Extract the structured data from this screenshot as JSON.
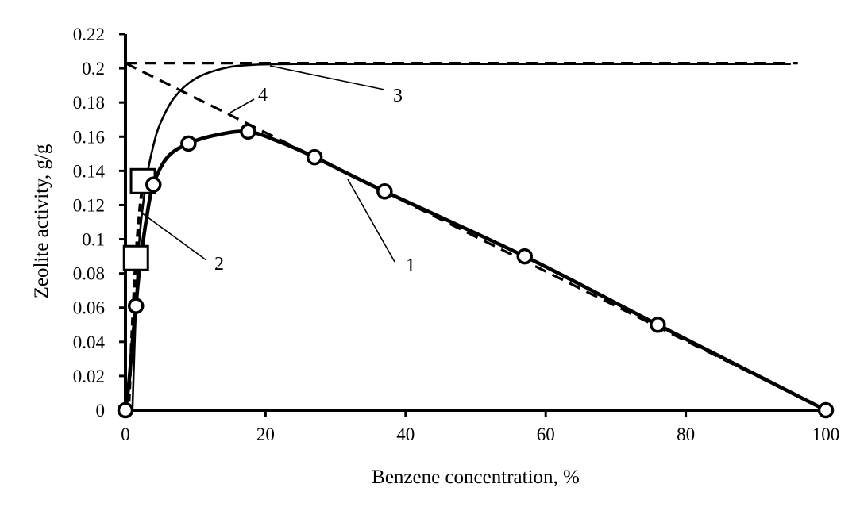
{
  "chart_data": {
    "type": "line",
    "xlabel": "Benzene concentration, %",
    "ylabel": "Zeolite activity, g/g",
    "xlim": [
      0,
      100
    ],
    "ylim": [
      0,
      0.22
    ],
    "xticks": [
      0,
      20,
      40,
      60,
      80,
      100
    ],
    "yticks": [
      0,
      0.02,
      0.04,
      0.06,
      0.08,
      0.1,
      0.12,
      0.14,
      0.16,
      0.18,
      0.2,
      0.22
    ],
    "grid": false,
    "series": [
      {
        "name": "1",
        "style": "thick solid with circle markers",
        "x": [
          0,
          1.5,
          4,
          9,
          17.5,
          27,
          37,
          57,
          76,
          100
        ],
        "y": [
          0,
          0.061,
          0.132,
          0.156,
          0.163,
          0.148,
          0.128,
          0.09,
          0.05,
          0
        ],
        "curve_x": [
          0,
          0.5,
          1,
          1.5,
          2,
          3,
          4,
          6,
          9,
          13,
          17.5,
          22,
          27,
          37,
          57,
          76,
          100
        ],
        "curve_y": [
          0,
          0.016,
          0.04,
          0.061,
          0.082,
          0.112,
          0.132,
          0.148,
          0.156,
          0.161,
          0.163,
          0.157,
          0.148,
          0.128,
          0.09,
          0.05,
          0
        ]
      },
      {
        "name": "2",
        "style": "thick dashed with square markers",
        "x": [
          1.5,
          2.5
        ],
        "y": [
          0.089,
          0.134
        ],
        "curve_x": [
          0.5,
          1,
          1.5,
          2,
          2.5
        ],
        "curve_y": [
          0.005,
          0.05,
          0.089,
          0.115,
          0.134
        ]
      },
      {
        "name": "3",
        "style": "thin solid",
        "curve_x": [
          1,
          1.5,
          2,
          3,
          4,
          5,
          7,
          10,
          14,
          18,
          25,
          40,
          60,
          80,
          95
        ],
        "curve_y": [
          0,
          0.06,
          0.1,
          0.135,
          0.155,
          0.168,
          0.183,
          0.194,
          0.2,
          0.202,
          0.2025,
          0.2025,
          0.2025,
          0.2025,
          0.2025
        ]
      },
      {
        "name": "4",
        "style": "dashed",
        "segments": [
          {
            "x": [
              0,
              96
            ],
            "y": [
              0.203,
              0.203
            ]
          },
          {
            "x": [
              0,
              100
            ],
            "y": [
              0.203,
              0
            ]
          }
        ]
      }
    ],
    "annotations": [
      {
        "text": "1",
        "points_to_series": "1"
      },
      {
        "text": "2",
        "points_to_series": "2"
      },
      {
        "text": "3",
        "points_to_series": "3"
      },
      {
        "text": "4",
        "points_to_series": "4"
      }
    ]
  }
}
